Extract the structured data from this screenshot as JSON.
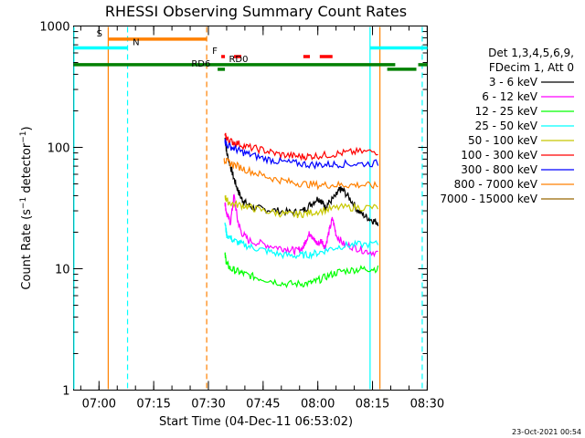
{
  "chart_data": {
    "type": "line",
    "title": "RHESSI Observing Summary Count Rates",
    "xlabel": "Start Time (04-Dec-11 06:53:02)",
    "ylabel": "Count Rate (s⁻¹ detector⁻¹)",
    "ylabel_parts": [
      "Count Rate (s",
      "−1",
      " detector",
      "−1",
      ")"
    ],
    "yscale": "log",
    "ylim": [
      1,
      1000
    ],
    "xlim_minutes": [
      0,
      97
    ],
    "x_ticks": [
      {
        "label": "07:00",
        "min": 6.97
      },
      {
        "label": "07:15",
        "min": 21.97
      },
      {
        "label": "07:30",
        "min": 36.97
      },
      {
        "label": "07:45",
        "min": 51.97
      },
      {
        "label": "08:00",
        "min": 66.97
      },
      {
        "label": "08:15",
        "min": 81.97
      },
      {
        "label": "08:30",
        "min": 96.97
      }
    ],
    "y_ticks": [
      {
        "label": "1",
        "value": 1
      },
      {
        "label": "10",
        "value": 10
      },
      {
        "label": "100",
        "value": 100
      },
      {
        "label": "1000",
        "value": 1000
      }
    ],
    "legend_header": [
      "Det 1,3,4,5,6,9,",
      "FDecim 1, Att 0"
    ],
    "series": [
      {
        "name": "3 - 6 keV",
        "color": "#000000",
        "points": [
          [
            41.5,
            120
          ],
          [
            42,
            90
          ],
          [
            43,
            70
          ],
          [
            44,
            55
          ],
          [
            45,
            45
          ],
          [
            46,
            38
          ],
          [
            47,
            35
          ],
          [
            49,
            32
          ],
          [
            52,
            31
          ],
          [
            56,
            30
          ],
          [
            60,
            29
          ],
          [
            63,
            30
          ],
          [
            65,
            34
          ],
          [
            67,
            38
          ],
          [
            68,
            36
          ],
          [
            69,
            32
          ],
          [
            70,
            35
          ],
          [
            72,
            40
          ],
          [
            73,
            45
          ],
          [
            74,
            44
          ],
          [
            76,
            37
          ],
          [
            78,
            30
          ],
          [
            80,
            27
          ],
          [
            82,
            25
          ],
          [
            83.5,
            24
          ]
        ]
      },
      {
        "name": "6 - 12 keV",
        "color": "#ff00ff",
        "points": [
          [
            41.5,
            35
          ],
          [
            42,
            28
          ],
          [
            43,
            24
          ],
          [
            44,
            40
          ],
          [
            45,
            25
          ],
          [
            46,
            20
          ],
          [
            48,
            17
          ],
          [
            52,
            16
          ],
          [
            56,
            15
          ],
          [
            59,
            14.5
          ],
          [
            61,
            14
          ],
          [
            63,
            15
          ],
          [
            64,
            18
          ],
          [
            65,
            20
          ],
          [
            66,
            17
          ],
          [
            67,
            16
          ],
          [
            68,
            17
          ],
          [
            69,
            15
          ],
          [
            70,
            20
          ],
          [
            71,
            26
          ],
          [
            72,
            19
          ],
          [
            74,
            16
          ],
          [
            77,
            15
          ],
          [
            80,
            14
          ],
          [
            83.5,
            13.5
          ]
        ]
      },
      {
        "name": "12 - 25 keV",
        "color": "#00ff00",
        "points": [
          [
            41.5,
            13
          ],
          [
            42,
            11
          ],
          [
            43,
            10
          ],
          [
            45,
            9.5
          ],
          [
            47,
            9
          ],
          [
            50,
            8.5
          ],
          [
            54,
            8
          ],
          [
            58,
            7.5
          ],
          [
            62,
            7.5
          ],
          [
            65,
            7.6
          ],
          [
            67,
            8
          ],
          [
            70,
            8.8
          ],
          [
            73,
            9.5
          ],
          [
            77,
            9.8
          ],
          [
            80,
            10
          ],
          [
            83.5,
            10
          ]
        ]
      },
      {
        "name": "25 - 50 keV",
        "color": "#00ffff",
        "points": [
          [
            41.5,
            24
          ],
          [
            42,
            19
          ],
          [
            44,
            17
          ],
          [
            46,
            16
          ],
          [
            49,
            15
          ],
          [
            53,
            14
          ],
          [
            57,
            13
          ],
          [
            61,
            12.8
          ],
          [
            64,
            13
          ],
          [
            67,
            13.5
          ],
          [
            70,
            14.5
          ],
          [
            74,
            15.5
          ],
          [
            78,
            15.8
          ],
          [
            83.5,
            16
          ]
        ]
      },
      {
        "name": "50 - 100 keV",
        "color": "#c8c800",
        "points": [
          [
            41.5,
            40
          ],
          [
            42,
            36
          ],
          [
            44,
            34
          ],
          [
            47,
            33
          ],
          [
            50,
            31
          ],
          [
            55,
            29
          ],
          [
            59,
            28
          ],
          [
            62,
            28
          ],
          [
            65,
            29
          ],
          [
            69,
            30.5
          ],
          [
            73,
            32
          ],
          [
            78,
            32
          ],
          [
            83.5,
            32
          ]
        ]
      },
      {
        "name": "100 - 300 keV",
        "color": "#ff0000",
        "points": [
          [
            41.5,
            125
          ],
          [
            42,
            118
          ],
          [
            43,
            112
          ],
          [
            45,
            108
          ],
          [
            48,
            100
          ],
          [
            52,
            95
          ],
          [
            56,
            88
          ],
          [
            60,
            85
          ],
          [
            63,
            84
          ],
          [
            66,
            85
          ],
          [
            70,
            87
          ],
          [
            74,
            90
          ],
          [
            78,
            92
          ],
          [
            83.5,
            92
          ]
        ]
      },
      {
        "name": "300 - 800 keV",
        "color": "#0000ff",
        "points": [
          [
            41.5,
            115
          ],
          [
            42,
            105
          ],
          [
            44,
            98
          ],
          [
            46,
            92
          ],
          [
            49,
            86
          ],
          [
            53,
            80
          ],
          [
            57,
            76
          ],
          [
            61,
            74
          ],
          [
            65,
            72
          ],
          [
            69,
            72
          ],
          [
            73,
            73
          ],
          [
            78,
            73
          ],
          [
            83.5,
            74
          ]
        ]
      },
      {
        "name": "800 - 7000 keV",
        "color": "#ff8000",
        "points": [
          [
            41.2,
            80
          ],
          [
            42,
            76
          ],
          [
            44,
            72
          ],
          [
            47,
            66
          ],
          [
            51,
            60
          ],
          [
            55,
            55
          ],
          [
            59,
            52
          ],
          [
            63,
            50
          ],
          [
            67,
            49
          ],
          [
            71,
            49
          ],
          [
            75,
            49
          ],
          [
            79,
            49
          ],
          [
            83.5,
            48
          ]
        ]
      },
      {
        "name": "7000 - 15000 keV",
        "color": "#996600",
        "points": []
      }
    ],
    "vertical_lines": [
      {
        "min": 0.1,
        "color": "#00ffff",
        "style": "solid"
      },
      {
        "min": 9.5,
        "color": "#ff8000",
        "style": "solid"
      },
      {
        "min": 14.8,
        "color": "#00ffff",
        "style": "dashed"
      },
      {
        "min": 36.5,
        "color": "#ff8000",
        "style": "dashed"
      },
      {
        "min": 81.3,
        "color": "#00ffff",
        "style": "solid"
      },
      {
        "min": 84.0,
        "color": "#ff8000",
        "style": "solid"
      },
      {
        "min": 95.6,
        "color": "#00ffff",
        "style": "dashed"
      }
    ],
    "state_bars": [
      {
        "label": "S",
        "color": "#ff8000",
        "value": 780,
        "segments": [
          [
            9.5,
            36.6
          ]
        ],
        "label_min": 6.3
      },
      {
        "label": "N",
        "color": "#00ffff",
        "value": 660,
        "segments": [
          [
            0,
            14.8
          ],
          [
            81.3,
            97
          ]
        ],
        "label_min": 16.2
      },
      {
        "label": "F",
        "color": "#ff0000",
        "value": 560,
        "segments": [
          [
            40.5,
            41.5
          ],
          [
            44.0,
            46.0
          ],
          [
            63.0,
            64.8
          ],
          [
            67.5,
            71.0
          ]
        ],
        "label_min": 38.0
      },
      {
        "label": "RD0",
        "color": "#008000",
        "value": 480,
        "segments": [
          [
            0,
            88.2
          ],
          [
            94.5,
            97
          ]
        ],
        "label_min": 42.6
      },
      {
        "label": "RD6",
        "color": "#008000",
        "value": 440,
        "segments": [
          [
            39.5,
            41.5
          ],
          [
            86.0,
            94.0
          ]
        ],
        "label_min": 32.3
      }
    ],
    "footer_date": "23-Oct-2021 00:54"
  }
}
